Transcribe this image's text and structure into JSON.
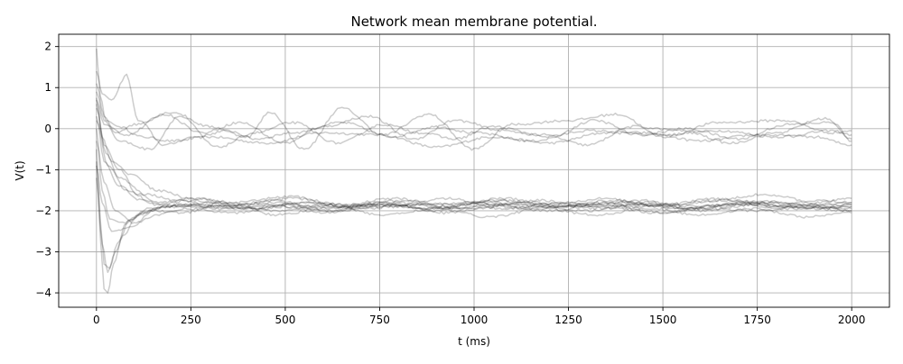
{
  "chart_data": {
    "type": "line",
    "title": "Network mean membrane potential.",
    "xlabel": "t (ms)",
    "ylabel": "V(t)",
    "xlim": [
      -100,
      2100
    ],
    "ylim": [
      -4.35,
      2.3
    ],
    "xticks": [
      0,
      250,
      500,
      750,
      1000,
      1250,
      1500,
      1750,
      2000
    ],
    "yticks": [
      2,
      1,
      0,
      -1,
      -2,
      -3,
      -4
    ],
    "xtick_labels": [
      "0",
      "250",
      "500",
      "750",
      "1000",
      "1250",
      "1500",
      "1750",
      "2000"
    ],
    "ytick_labels": [
      "2",
      "1",
      "0",
      "−1",
      "−2",
      "−3",
      "−4"
    ],
    "grid": true,
    "line_color": "#000000",
    "line_alpha": 0.2,
    "series": [
      {
        "values": [
          [
            0,
            1.95
          ],
          [
            10,
            0.8
          ],
          [
            25,
            0.2
          ],
          [
            60,
            0.05
          ],
          [
            120,
            -0.2
          ],
          [
            200,
            -0.3
          ],
          [
            300,
            -0.2
          ],
          [
            450,
            -0.35
          ],
          [
            600,
            -0.1
          ],
          [
            750,
            -0.15
          ],
          [
            900,
            -0.45
          ],
          [
            1050,
            -0.2
          ],
          [
            1200,
            -0.35
          ],
          [
            1350,
            -0.1
          ],
          [
            1500,
            -0.15
          ],
          [
            1650,
            -0.05
          ],
          [
            1800,
            -0.2
          ],
          [
            1950,
            -0.05
          ],
          [
            2000,
            -0.15
          ]
        ]
      },
      {
        "values": [
          [
            0,
            1.4
          ],
          [
            15,
            0.85
          ],
          [
            40,
            0.7
          ],
          [
            80,
            1.3
          ],
          [
            110,
            0.2
          ],
          [
            180,
            -0.4
          ],
          [
            260,
            -0.2
          ],
          [
            350,
            -0.05
          ],
          [
            420,
            -0.25
          ],
          [
            520,
            -0.1
          ],
          [
            650,
            0.15
          ],
          [
            780,
            -0.2
          ],
          [
            900,
            0.05
          ],
          [
            1000,
            -0.1
          ],
          [
            1150,
            -0.3
          ],
          [
            1300,
            -0.05
          ],
          [
            1450,
            -0.1
          ],
          [
            1600,
            -0.3
          ],
          [
            1750,
            -0.15
          ],
          [
            1900,
            -0.2
          ],
          [
            2000,
            -0.4
          ]
        ]
      },
      {
        "values": [
          [
            0,
            1.1
          ],
          [
            20,
            0.3
          ],
          [
            50,
            -0.1
          ],
          [
            100,
            0.1
          ],
          [
            200,
            0.4
          ],
          [
            300,
            0.05
          ],
          [
            400,
            -0.2
          ],
          [
            460,
            0.4
          ],
          [
            550,
            -0.5
          ],
          [
            650,
            0.5
          ],
          [
            760,
            -0.15
          ],
          [
            880,
            0.35
          ],
          [
            1000,
            -0.5
          ],
          [
            1100,
            0.1
          ],
          [
            1250,
            0.2
          ],
          [
            1380,
            0.35
          ],
          [
            1500,
            -0.2
          ],
          [
            1650,
            0.15
          ],
          [
            1820,
            0.2
          ],
          [
            1950,
            -0.1
          ],
          [
            2000,
            -0.05
          ]
        ]
      },
      {
        "values": [
          [
            0,
            0.9
          ],
          [
            20,
            0.2
          ],
          [
            60,
            -0.3
          ],
          [
            140,
            -0.5
          ],
          [
            220,
            0.3
          ],
          [
            320,
            -0.45
          ],
          [
            420,
            -0.1
          ],
          [
            520,
            0.15
          ],
          [
            640,
            -0.35
          ],
          [
            760,
            0.1
          ],
          [
            860,
            -0.1
          ],
          [
            950,
            -0.25
          ],
          [
            1050,
            0.05
          ],
          [
            1180,
            -0.15
          ],
          [
            1300,
            -0.4
          ],
          [
            1420,
            0.05
          ],
          [
            1550,
            -0.05
          ],
          [
            1680,
            -0.35
          ],
          [
            1800,
            -0.1
          ],
          [
            1930,
            0.25
          ],
          [
            2000,
            -0.25
          ]
        ]
      },
      {
        "values": [
          [
            0,
            0.7
          ],
          [
            20,
            0.1
          ],
          [
            80,
            -0.15
          ],
          [
            180,
            0.35
          ],
          [
            280,
            -0.1
          ],
          [
            380,
            0.15
          ],
          [
            500,
            -0.35
          ],
          [
            600,
            0.05
          ],
          [
            720,
            0.3
          ],
          [
            840,
            -0.25
          ],
          [
            950,
            0.2
          ],
          [
            1080,
            -0.05
          ],
          [
            1200,
            -0.2
          ],
          [
            1320,
            0.2
          ],
          [
            1440,
            -0.15
          ],
          [
            1560,
            0.0
          ],
          [
            1700,
            -0.25
          ],
          [
            1830,
            0.1
          ],
          [
            1950,
            0.15
          ],
          [
            2000,
            -0.3
          ]
        ]
      },
      {
        "values": [
          [
            0,
            0.6
          ],
          [
            20,
            -0.4
          ],
          [
            60,
            -1.0
          ],
          [
            110,
            -1.6
          ],
          [
            170,
            -1.8
          ],
          [
            260,
            -1.75
          ],
          [
            400,
            -1.95
          ],
          [
            550,
            -1.8
          ],
          [
            700,
            -1.95
          ],
          [
            850,
            -1.85
          ],
          [
            1000,
            -1.8
          ],
          [
            1150,
            -1.95
          ],
          [
            1300,
            -1.85
          ],
          [
            1450,
            -1.75
          ],
          [
            1600,
            -2.0
          ],
          [
            1750,
            -1.85
          ],
          [
            1900,
            -1.95
          ],
          [
            2000,
            -1.85
          ]
        ]
      },
      {
        "values": [
          [
            0,
            0.3
          ],
          [
            20,
            -0.8
          ],
          [
            60,
            -1.4
          ],
          [
            120,
            -1.75
          ],
          [
            200,
            -1.9
          ],
          [
            320,
            -1.8
          ],
          [
            480,
            -2.0
          ],
          [
            620,
            -1.85
          ],
          [
            780,
            -1.9
          ],
          [
            930,
            -1.7
          ],
          [
            1080,
            -1.95
          ],
          [
            1230,
            -1.8
          ],
          [
            1380,
            -1.95
          ],
          [
            1530,
            -1.85
          ],
          [
            1680,
            -1.75
          ],
          [
            1830,
            -1.95
          ],
          [
            2000,
            -1.9
          ]
        ]
      },
      {
        "values": [
          [
            0,
            0.0
          ],
          [
            15,
            -1.5
          ],
          [
            35,
            -2.2
          ],
          [
            70,
            -2.3
          ],
          [
            120,
            -2.05
          ],
          [
            200,
            -1.85
          ],
          [
            330,
            -1.9
          ],
          [
            470,
            -1.8
          ],
          [
            610,
            -2.0
          ],
          [
            760,
            -1.85
          ],
          [
            900,
            -1.95
          ],
          [
            1050,
            -1.75
          ],
          [
            1200,
            -1.9
          ],
          [
            1350,
            -1.8
          ],
          [
            1500,
            -2.05
          ],
          [
            1650,
            -1.85
          ],
          [
            1800,
            -1.8
          ],
          [
            1950,
            -1.95
          ],
          [
            2000,
            -1.9
          ]
        ]
      },
      {
        "values": [
          [
            0,
            -0.5
          ],
          [
            10,
            -2.2
          ],
          [
            20,
            -3.3
          ],
          [
            35,
            -3.4
          ],
          [
            55,
            -2.8
          ],
          [
            90,
            -2.2
          ],
          [
            140,
            -1.95
          ],
          [
            230,
            -1.85
          ],
          [
            360,
            -1.95
          ],
          [
            500,
            -1.85
          ],
          [
            640,
            -1.9
          ],
          [
            790,
            -1.8
          ],
          [
            940,
            -1.95
          ],
          [
            1090,
            -1.85
          ],
          [
            1240,
            -1.9
          ],
          [
            1390,
            -1.8
          ],
          [
            1540,
            -1.95
          ],
          [
            1690,
            -1.85
          ],
          [
            1840,
            -1.9
          ],
          [
            2000,
            -2.0
          ]
        ]
      },
      {
        "values": [
          [
            0,
            -0.8
          ],
          [
            10,
            -2.6
          ],
          [
            20,
            -3.9
          ],
          [
            30,
            -4.0
          ],
          [
            45,
            -3.3
          ],
          [
            70,
            -2.6
          ],
          [
            110,
            -2.1
          ],
          [
            170,
            -1.9
          ],
          [
            280,
            -1.85
          ],
          [
            420,
            -1.95
          ],
          [
            560,
            -1.8
          ],
          [
            700,
            -1.9
          ],
          [
            850,
            -1.85
          ],
          [
            1000,
            -1.95
          ],
          [
            1150,
            -1.8
          ],
          [
            1300,
            -1.9
          ],
          [
            1450,
            -1.85
          ],
          [
            1600,
            -1.95
          ],
          [
            1750,
            -1.8
          ],
          [
            1900,
            -1.9
          ],
          [
            2000,
            -1.95
          ]
        ]
      },
      {
        "values": [
          [
            0,
            -1.2
          ],
          [
            15,
            -2.8
          ],
          [
            30,
            -3.5
          ],
          [
            50,
            -3.0
          ],
          [
            80,
            -2.3
          ],
          [
            130,
            -2.0
          ],
          [
            200,
            -1.9
          ],
          [
            320,
            -1.95
          ],
          [
            460,
            -1.85
          ],
          [
            600,
            -2.05
          ],
          [
            740,
            -1.85
          ],
          [
            880,
            -1.95
          ],
          [
            1020,
            -1.8
          ],
          [
            1160,
            -1.9
          ],
          [
            1300,
            -2.0
          ],
          [
            1440,
            -1.85
          ],
          [
            1580,
            -1.95
          ],
          [
            1720,
            -1.8
          ],
          [
            1860,
            -1.9
          ],
          [
            2000,
            -1.85
          ]
        ]
      },
      {
        "values": [
          [
            0,
            0.5
          ],
          [
            25,
            -0.6
          ],
          [
            60,
            -1.2
          ],
          [
            130,
            -1.6
          ],
          [
            220,
            -1.75
          ],
          [
            330,
            -1.9
          ],
          [
            470,
            -1.75
          ],
          [
            610,
            -1.95
          ],
          [
            760,
            -1.8
          ],
          [
            900,
            -2.0
          ],
          [
            1040,
            -1.85
          ],
          [
            1180,
            -1.75
          ],
          [
            1320,
            -1.95
          ],
          [
            1460,
            -1.8
          ],
          [
            1600,
            -1.9
          ],
          [
            1740,
            -1.75
          ],
          [
            1880,
            -1.85
          ],
          [
            2000,
            -1.8
          ]
        ]
      },
      {
        "values": [
          [
            0,
            -0.3
          ],
          [
            20,
            -1.3
          ],
          [
            50,
            -2.0
          ],
          [
            100,
            -2.3
          ],
          [
            160,
            -2.1
          ],
          [
            240,
            -1.95
          ],
          [
            360,
            -2.05
          ],
          [
            500,
            -1.9
          ],
          [
            640,
            -2.0
          ],
          [
            780,
            -1.85
          ],
          [
            920,
            -2.05
          ],
          [
            1060,
            -1.9
          ],
          [
            1200,
            -2.0
          ],
          [
            1340,
            -1.85
          ],
          [
            1480,
            -2.05
          ],
          [
            1620,
            -1.95
          ],
          [
            1760,
            -2.0
          ],
          [
            1900,
            -1.85
          ],
          [
            2000,
            -2.0
          ]
        ]
      },
      {
        "values": [
          [
            0,
            0.2
          ],
          [
            30,
            -0.9
          ],
          [
            80,
            -1.5
          ],
          [
            160,
            -1.85
          ],
          [
            260,
            -1.7
          ],
          [
            380,
            -1.85
          ],
          [
            520,
            -1.7
          ],
          [
            660,
            -1.9
          ],
          [
            800,
            -1.75
          ],
          [
            940,
            -1.85
          ],
          [
            1080,
            -1.7
          ],
          [
            1220,
            -1.9
          ],
          [
            1360,
            -1.75
          ],
          [
            1500,
            -1.85
          ],
          [
            1640,
            -1.7
          ],
          [
            1780,
            -1.9
          ],
          [
            1920,
            -1.75
          ],
          [
            2000,
            -1.8
          ]
        ]
      },
      {
        "values": [
          [
            0,
            -0.9
          ],
          [
            15,
            -1.8
          ],
          [
            40,
            -2.5
          ],
          [
            90,
            -2.4
          ],
          [
            150,
            -2.0
          ],
          [
            230,
            -2.05
          ],
          [
            340,
            -1.8
          ],
          [
            480,
            -2.1
          ],
          [
            620,
            -1.9
          ],
          [
            760,
            -2.1
          ],
          [
            900,
            -1.95
          ],
          [
            1040,
            -2.15
          ],
          [
            1180,
            -1.95
          ],
          [
            1320,
            -2.1
          ],
          [
            1460,
            -1.95
          ],
          [
            1600,
            -2.1
          ],
          [
            1740,
            -1.95
          ],
          [
            1880,
            -2.15
          ],
          [
            2000,
            -2.05
          ]
        ]
      },
      {
        "values": [
          [
            0,
            0.75
          ],
          [
            15,
            -0.2
          ],
          [
            40,
            -0.8
          ],
          [
            90,
            -1.1
          ],
          [
            160,
            -1.5
          ],
          [
            250,
            -1.7
          ],
          [
            370,
            -1.8
          ],
          [
            510,
            -1.65
          ],
          [
            650,
            -1.85
          ],
          [
            790,
            -1.7
          ],
          [
            930,
            -1.9
          ],
          [
            1070,
            -1.75
          ],
          [
            1210,
            -1.85
          ],
          [
            1350,
            -1.7
          ],
          [
            1490,
            -1.9
          ],
          [
            1630,
            -1.75
          ],
          [
            1770,
            -1.6
          ],
          [
            1910,
            -1.8
          ],
          [
            2000,
            -1.7
          ]
        ]
      }
    ]
  }
}
